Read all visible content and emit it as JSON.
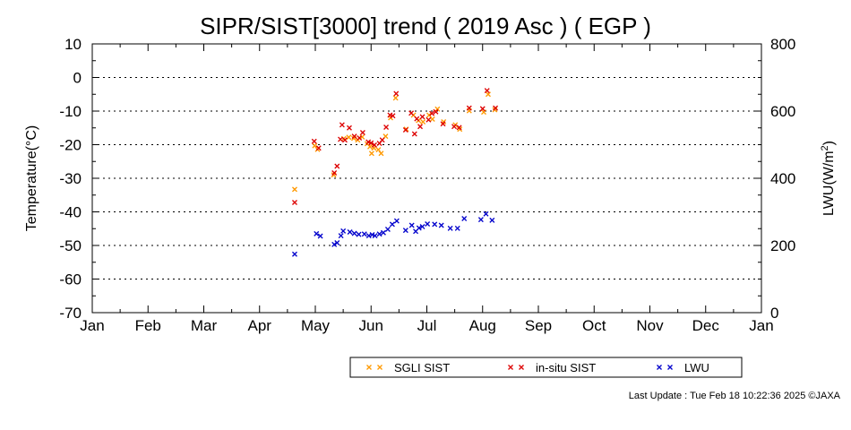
{
  "chart_data": {
    "type": "scatter",
    "title": "SIPR/SIST[3000] trend ( 2019 Asc ) ( EGP )",
    "ylabel_left": "Temperature(°C)",
    "ylabel_right_base": "LWU(W/m",
    "ylabel_right_sup": "2",
    "ylabel_right_close": ")",
    "ylim_left": [
      -70,
      10
    ],
    "ylim_right": [
      0,
      800
    ],
    "yticks_left": [
      "10",
      "0",
      "-10",
      "-20",
      "-30",
      "-40",
      "-50",
      "-60",
      "-70"
    ],
    "yticks_right": [
      "800",
      "600",
      "400",
      "200",
      "0"
    ],
    "xlim_months": [
      0,
      12
    ],
    "xticks": [
      "Jan",
      "Feb",
      "Mar",
      "Apr",
      "May",
      "Jun",
      "Jul",
      "Aug",
      "Sep",
      "Oct",
      "Nov",
      "Dec",
      "Jan"
    ],
    "grid": "horizontal-dotted",
    "legend_position": "bottom-right",
    "series": [
      {
        "name": "SGLI SIST",
        "color": "#ff9900",
        "axis": "left",
        "points": [
          [
            3.63,
            -33.3
          ],
          [
            3.99,
            -20.3
          ],
          [
            4.04,
            -21.4
          ],
          [
            4.33,
            -29.0
          ],
          [
            4.51,
            -18.2
          ],
          [
            4.6,
            -17.8
          ],
          [
            4.69,
            -18.1
          ],
          [
            4.76,
            -18.6
          ],
          [
            4.84,
            -17.7
          ],
          [
            4.93,
            -19.7
          ],
          [
            4.98,
            -20.6
          ],
          [
            5.01,
            -22.6
          ],
          [
            5.05,
            -21.0
          ],
          [
            5.13,
            -21.5
          ],
          [
            5.18,
            -22.6
          ],
          [
            5.26,
            -17.5
          ],
          [
            5.35,
            -12.0
          ],
          [
            5.44,
            -6.1
          ],
          [
            5.63,
            -15.4
          ],
          [
            5.76,
            -11.2
          ],
          [
            5.85,
            -12.8
          ],
          [
            5.93,
            -13.2
          ],
          [
            6.04,
            -11.2
          ],
          [
            6.1,
            -12.4
          ],
          [
            6.19,
            -9.4
          ],
          [
            6.3,
            -13.2
          ],
          [
            6.51,
            -14.1
          ],
          [
            6.59,
            -15.4
          ],
          [
            6.76,
            -9.9
          ],
          [
            7.02,
            -10.3
          ],
          [
            7.1,
            -5.0
          ],
          [
            7.22,
            -9.6
          ]
        ]
      },
      {
        "name": "in-situ SIST",
        "color": "#dd0000",
        "axis": "left",
        "points": [
          [
            3.63,
            -37.2
          ],
          [
            3.98,
            -19.0
          ],
          [
            4.06,
            -21.0
          ],
          [
            4.34,
            -28.4
          ],
          [
            4.39,
            -26.4
          ],
          [
            4.45,
            -18.4
          ],
          [
            4.48,
            -14.1
          ],
          [
            4.53,
            -18.6
          ],
          [
            4.61,
            -15.0
          ],
          [
            4.7,
            -17.5
          ],
          [
            4.79,
            -18.0
          ],
          [
            4.85,
            -16.4
          ],
          [
            4.95,
            -19.2
          ],
          [
            5.0,
            -19.5
          ],
          [
            5.06,
            -20.1
          ],
          [
            5.15,
            -19.6
          ],
          [
            5.2,
            -18.6
          ],
          [
            5.27,
            -14.8
          ],
          [
            5.34,
            -11.2
          ],
          [
            5.39,
            -11.4
          ],
          [
            5.45,
            -4.8
          ],
          [
            5.62,
            -15.6
          ],
          [
            5.72,
            -10.6
          ],
          [
            5.78,
            -16.8
          ],
          [
            5.82,
            -12.3
          ],
          [
            5.88,
            -14.6
          ],
          [
            5.92,
            -11.7
          ],
          [
            6.03,
            -12.6
          ],
          [
            6.09,
            -10.7
          ],
          [
            6.16,
            -10.2
          ],
          [
            6.29,
            -13.8
          ],
          [
            6.49,
            -14.6
          ],
          [
            6.58,
            -14.9
          ],
          [
            6.76,
            -9.1
          ],
          [
            7.0,
            -9.3
          ],
          [
            7.08,
            -3.9
          ],
          [
            7.23,
            -9.1
          ]
        ]
      },
      {
        "name": "LWU",
        "color": "#0000cc",
        "axis": "right",
        "points": [
          [
            3.63,
            174
          ],
          [
            4.02,
            235
          ],
          [
            4.09,
            228
          ],
          [
            4.34,
            203
          ],
          [
            4.39,
            208
          ],
          [
            4.46,
            229
          ],
          [
            4.5,
            243
          ],
          [
            4.62,
            240
          ],
          [
            4.7,
            236
          ],
          [
            4.78,
            233
          ],
          [
            4.88,
            234
          ],
          [
            4.96,
            229
          ],
          [
            5.02,
            232
          ],
          [
            5.07,
            229
          ],
          [
            5.15,
            234
          ],
          [
            5.22,
            238
          ],
          [
            5.3,
            248
          ],
          [
            5.38,
            263
          ],
          [
            5.46,
            273
          ],
          [
            5.62,
            245
          ],
          [
            5.73,
            260
          ],
          [
            5.8,
            242
          ],
          [
            5.86,
            252
          ],
          [
            5.92,
            256
          ],
          [
            6.01,
            264
          ],
          [
            6.14,
            263
          ],
          [
            6.26,
            260
          ],
          [
            6.42,
            251
          ],
          [
            6.55,
            251
          ],
          [
            6.67,
            280
          ],
          [
            6.97,
            277
          ],
          [
            7.06,
            294
          ],
          [
            7.17,
            275
          ]
        ]
      }
    ]
  },
  "footer": {
    "last_update": "Last Update : Tue Feb 18 10:22:36 2025  ©JAXA"
  }
}
